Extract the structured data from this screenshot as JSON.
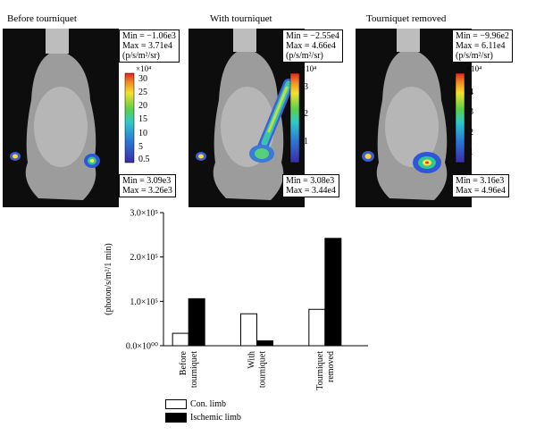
{
  "panels": [
    {
      "title": "Before tourniquet",
      "top_box": [
        "Min = −1.06e3",
        "Max = 3.71e4",
        "(p/s/m²/sr)"
      ],
      "bottom_box": [
        "Min = 3.09e3",
        "Max = 3.26e3"
      ],
      "cbar_exponent": "×10⁴",
      "cbar_ticks": [
        "30",
        "25",
        "20",
        "15",
        "10",
        "5",
        "0.5"
      ]
    },
    {
      "title": "With tourniquet",
      "top_box": [
        "Min = −2.55e4",
        "Max = 4.66e4",
        "(p/s/m²/sr)"
      ],
      "bottom_box": [
        "Min = 3.08e3",
        "Max = 3.44e4"
      ],
      "cbar_exponent": "×10⁴",
      "cbar_ticks": [
        "3",
        "2",
        "1"
      ]
    },
    {
      "title": "Tourniquet removed",
      "top_box": [
        "Min = −9.96e2",
        "Max = 6.11e4",
        "(p/s/m²/sr)"
      ],
      "bottom_box": [
        "Min = 3.16e3",
        "Max = 4.96e4"
      ],
      "cbar_exponent": "×10⁴",
      "cbar_ticks": [
        "4",
        "3",
        "2",
        "1"
      ]
    }
  ],
  "chart_data": {
    "type": "bar",
    "categories": [
      "Before tourniquet",
      "With tourniquet",
      "Tourniquet removed"
    ],
    "category_lines": [
      [
        "Before",
        "tourniquet"
      ],
      [
        "With",
        "tourniquet"
      ],
      [
        "Tourniquet",
        "removed"
      ]
    ],
    "series": [
      {
        "name": "Con. limb",
        "values": [
          28000,
          72000,
          82000
        ],
        "color": "#ffffff"
      },
      {
        "name": "Ischemic limb",
        "values": [
          106000,
          11000,
          242000
        ],
        "color": "#000000"
      }
    ],
    "ylabel": "(photon/s/m²/1 min)",
    "ylim": [
      0,
      300000
    ],
    "yticks": [
      {
        "value": 0,
        "label": "0.0×10⁰⁰"
      },
      {
        "value": 100000,
        "label": "1.0×10⁵"
      },
      {
        "value": 200000,
        "label": "2.0×10⁵"
      },
      {
        "value": 300000,
        "label": "3.0×10⁵"
      }
    ],
    "legend_placement": "bottom-left",
    "grid": false
  }
}
